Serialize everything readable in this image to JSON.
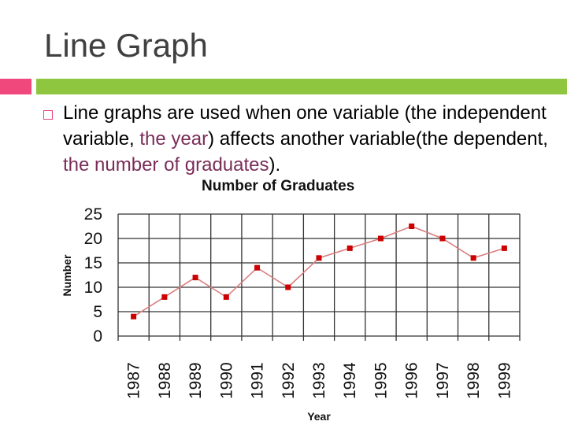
{
  "slide": {
    "title": "Line Graph",
    "accent_colors": {
      "pink": "#f0487d",
      "green": "#8ec63f"
    },
    "bullet_icon": "hollow-square-bullet-icon",
    "body": {
      "t1": "Line graphs are used when one variable (the independent variable, ",
      "h1": "the year",
      "t2": ") affects another variable(the dependent, ",
      "h2": "the number of graduates",
      "t3": ")."
    }
  },
  "chart_data": {
    "type": "line",
    "title": "Number of Graduates",
    "xlabel": "Year",
    "ylabel": "Number",
    "categories": [
      "1987",
      "1988",
      "1989",
      "1990",
      "1991",
      "1992",
      "1993",
      "1994",
      "1995",
      "1996",
      "1997",
      "1998",
      "1999"
    ],
    "values": [
      4,
      8,
      12,
      8,
      14,
      10,
      16,
      18,
      20,
      22.5,
      20,
      16,
      18
    ],
    "ylim": [
      0,
      25
    ],
    "yticks": [
      0,
      5,
      10,
      15,
      20,
      25
    ],
    "grid": true,
    "line_color": "#d97e7e",
    "marker_color": "#cc0000"
  }
}
